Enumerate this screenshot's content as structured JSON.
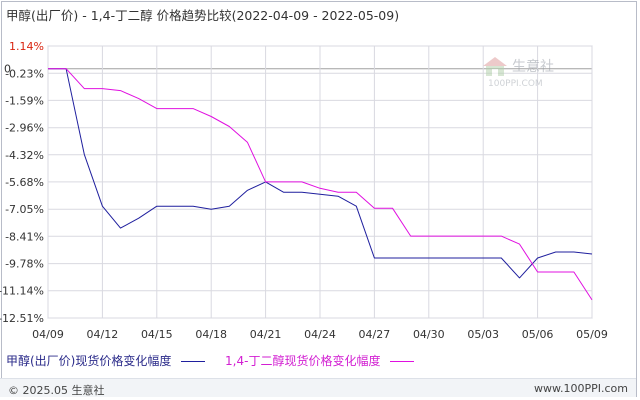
{
  "chart_title": "甲醇(出厂价) - 1,4-丁二醇 价格趋势比较(2022-04-09 - 2022-05-09)",
  "watermark": {
    "brand": "生意社",
    "url": "100PPI.COM"
  },
  "footer": {
    "copyright": "© 2025.05 生意社",
    "site": "www.100PPI.com"
  },
  "colors": {
    "series_1": "#1f1f9e",
    "series_2": "#e010e0",
    "grid": "#d9d9e0",
    "zero_line": "#a0a0a0"
  },
  "chart_data": {
    "type": "line",
    "title": "甲醇(出厂价) - 1,4-丁二醇 价格趋势比较(2022-04-09 - 2022-05-09)",
    "ylabel": "",
    "xlabel": "",
    "y_ticks": [
      "1.14%",
      "-0.23%",
      "-1.59%",
      "-2.96%",
      "-4.32%",
      "-5.68%",
      "-7.05%",
      "-8.41%",
      "-9.78%",
      "-11.14%",
      "-12.51%"
    ],
    "y_tick_values": [
      1.14,
      -0.23,
      -1.59,
      -2.96,
      -4.32,
      -5.68,
      -7.05,
      -8.41,
      -9.78,
      -11.14,
      -12.51
    ],
    "ylim": [
      -12.51,
      1.14
    ],
    "zero_label": "0",
    "x_ticks": [
      "04/09",
      "04/12",
      "04/15",
      "04/18",
      "04/21",
      "04/24",
      "04/27",
      "04/30",
      "05/03",
      "05/06",
      "05/09"
    ],
    "x": [
      "04/09",
      "04/10",
      "04/11",
      "04/12",
      "04/13",
      "04/14",
      "04/15",
      "04/16",
      "04/17",
      "04/18",
      "04/19",
      "04/20",
      "04/21",
      "04/22",
      "04/23",
      "04/24",
      "04/25",
      "04/26",
      "04/27",
      "04/28",
      "04/29",
      "04/30",
      "05/01",
      "05/02",
      "05/03",
      "05/04",
      "05/05",
      "05/06",
      "05/07",
      "05/08",
      "05/09"
    ],
    "series": [
      {
        "name": "甲醇(出厂价)现货价格变化幅度",
        "values": [
          0.0,
          0.0,
          -4.3,
          -6.9,
          -8.0,
          -7.5,
          -6.9,
          -6.9,
          -6.9,
          -7.05,
          -6.9,
          -6.1,
          -5.68,
          -6.2,
          -6.2,
          -6.3,
          -6.4,
          -6.9,
          -9.5,
          -9.5,
          -9.5,
          -9.5,
          -9.5,
          -9.5,
          -9.5,
          -9.5,
          -10.5,
          -9.5,
          -9.2,
          -9.2,
          -9.3
        ]
      },
      {
        "name": "1,4-丁二醇现货价格变化幅度",
        "values": [
          0.0,
          0.0,
          -1.0,
          -1.0,
          -1.1,
          -1.5,
          -2.0,
          -2.0,
          -2.0,
          -2.4,
          -2.9,
          -3.7,
          -5.68,
          -5.68,
          -5.68,
          -6.0,
          -6.2,
          -6.2,
          -7.0,
          -7.0,
          -8.4,
          -8.4,
          -8.4,
          -8.4,
          -8.4,
          -8.4,
          -8.8,
          -10.2,
          -10.2,
          -10.2,
          -11.6
        ]
      }
    ],
    "grid": true,
    "legend": "bottom-left"
  }
}
